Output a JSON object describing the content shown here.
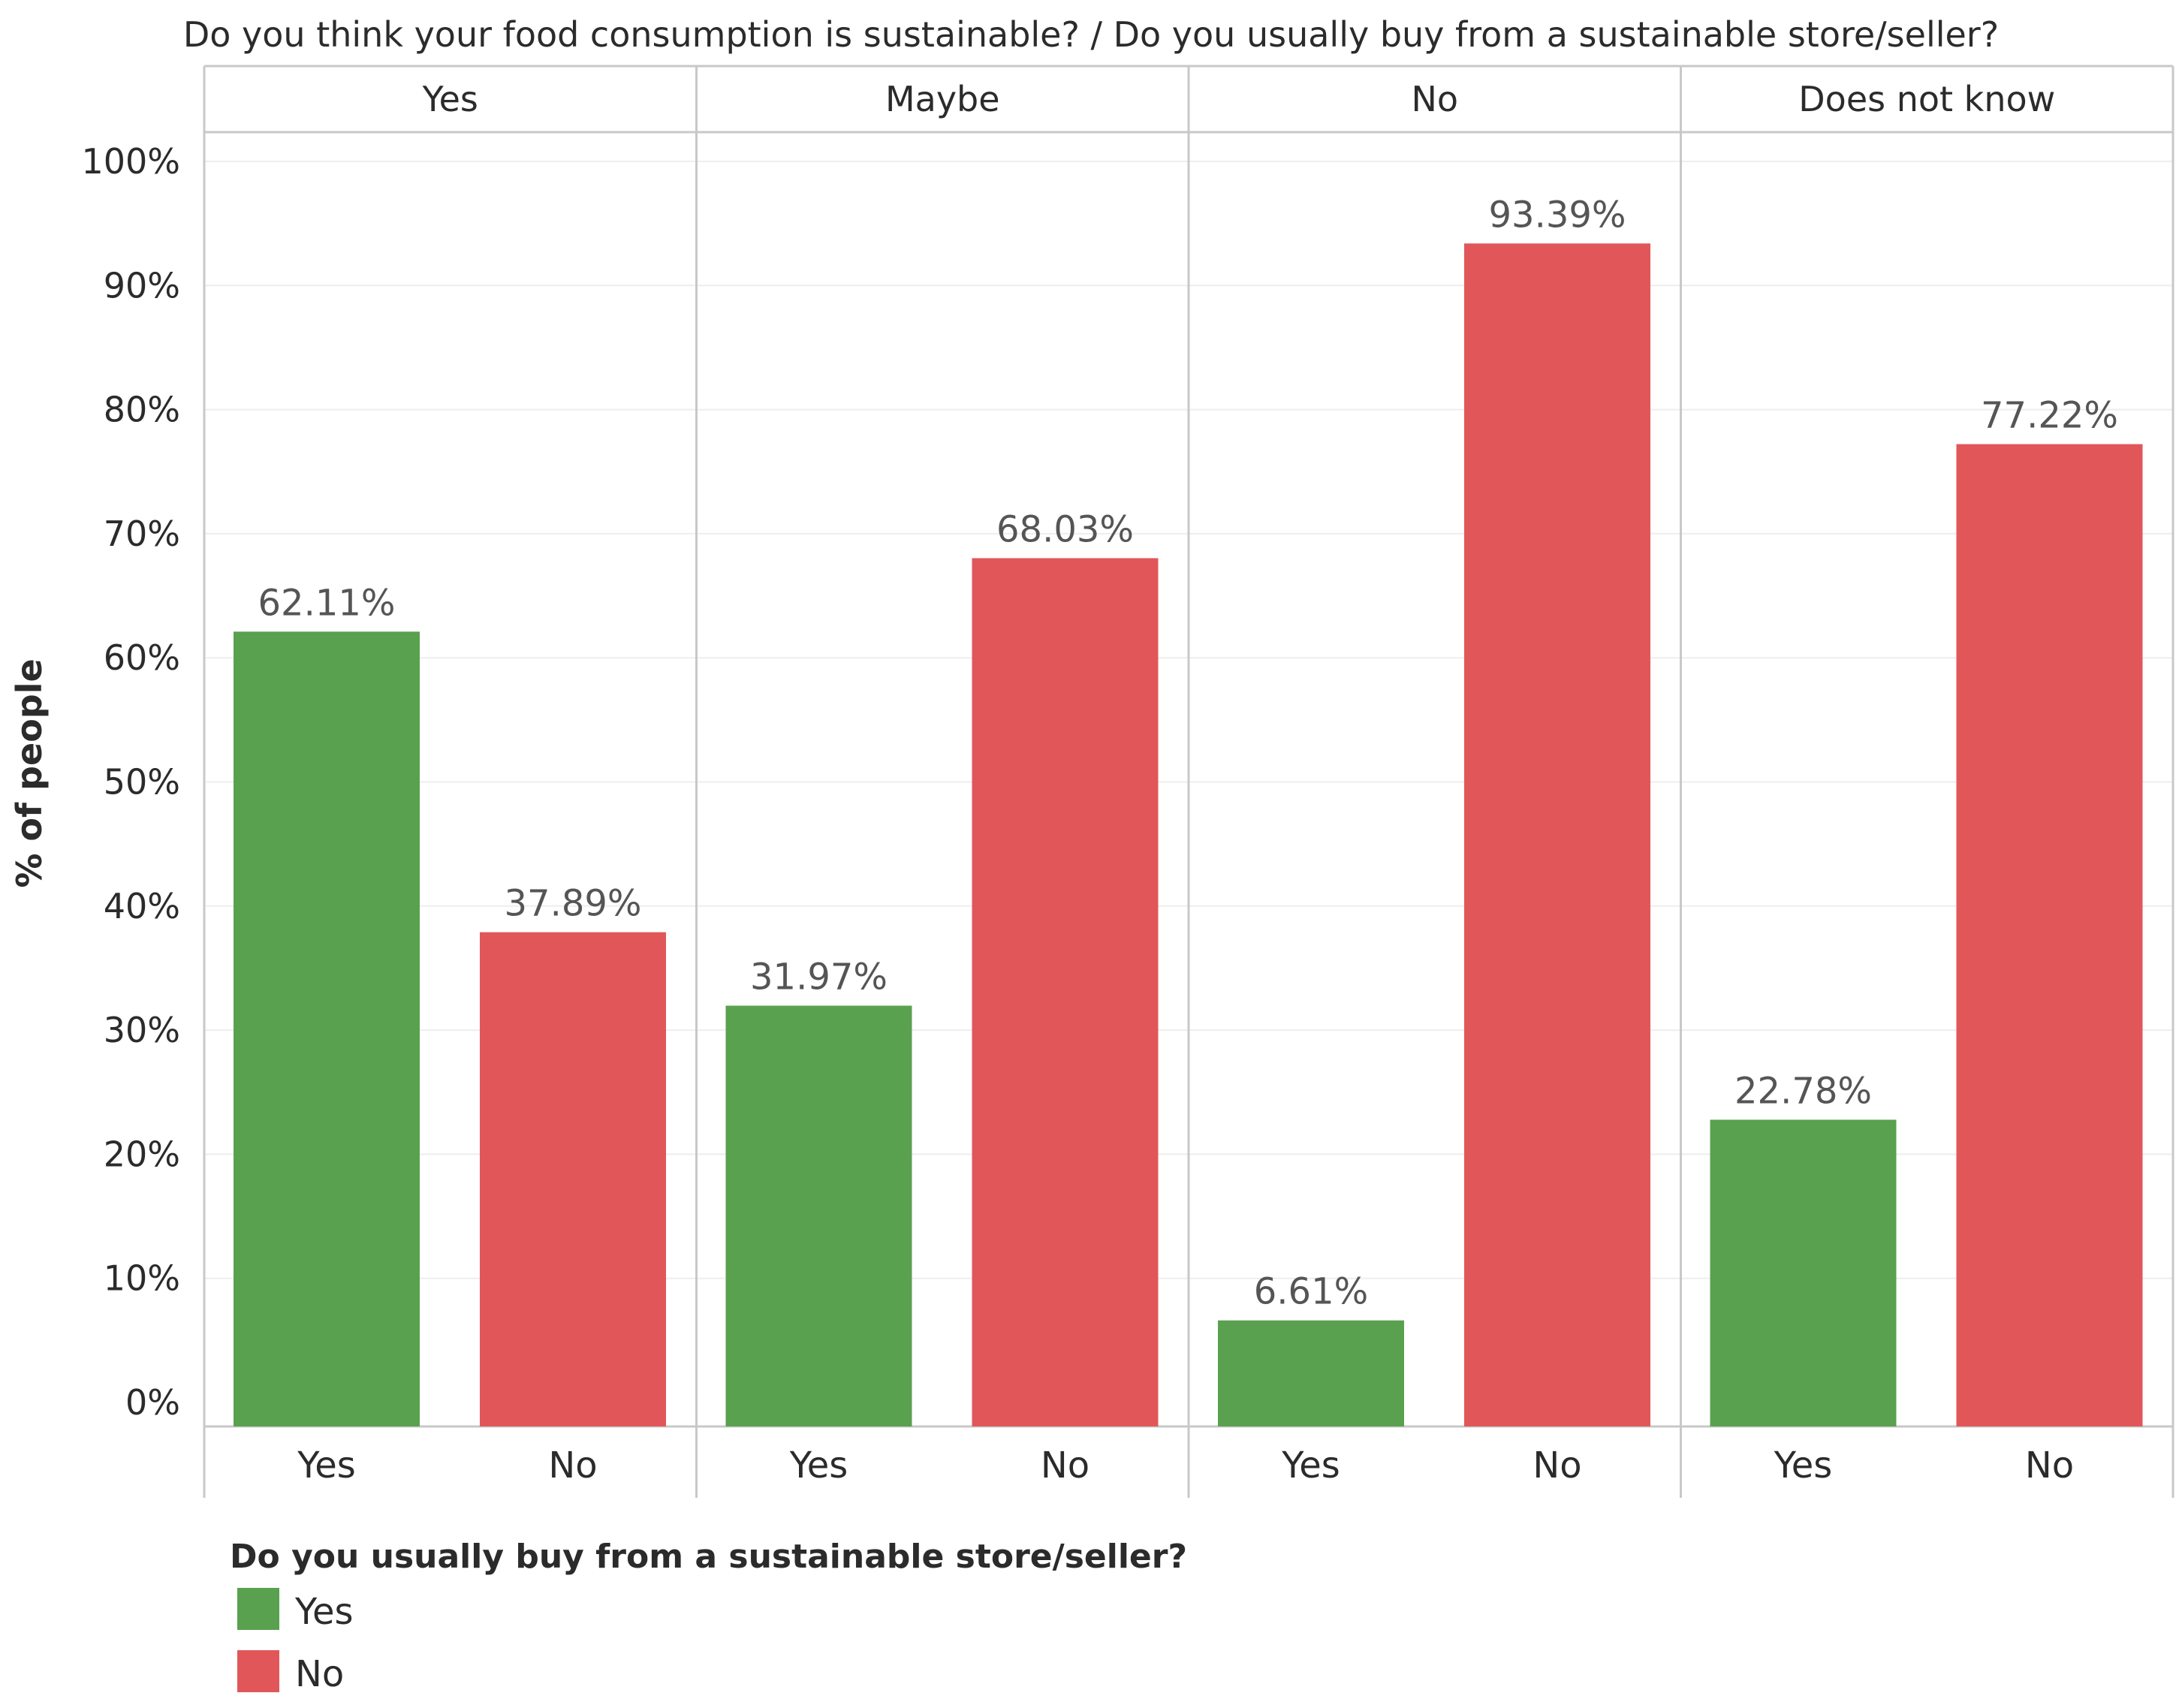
{
  "chart_data": {
    "type": "bar",
    "title": "Do you think your food consumption is sustainable?",
    "title_separator": "/",
    "subtitle": "Do you usually buy from a sustainable store/seller?",
    "ylabel": "% of people",
    "ylim": [
      0,
      100
    ],
    "yticks": [
      "0%",
      "10%",
      "20%",
      "30%",
      "40%",
      "50%",
      "60%",
      "70%",
      "80%",
      "90%",
      "100%"
    ],
    "grid": true,
    "value_suffix": "%",
    "legend_title": "Do you usually buy from a sustainable store/seller?",
    "legend_position": "bottom-left",
    "categories": [
      "Yes",
      "No"
    ],
    "series": [
      {
        "name": "Yes",
        "color": "#59a14f"
      },
      {
        "name": "No",
        "color": "#e15759"
      }
    ],
    "facets": [
      {
        "label": "Yes",
        "values": [
          62.11,
          37.89
        ]
      },
      {
        "label": "Maybe",
        "values": [
          31.97,
          68.03
        ]
      },
      {
        "label": "No",
        "values": [
          6.61,
          93.39
        ]
      },
      {
        "label": "Does not know",
        "values": [
          22.78,
          77.22
        ]
      }
    ]
  }
}
